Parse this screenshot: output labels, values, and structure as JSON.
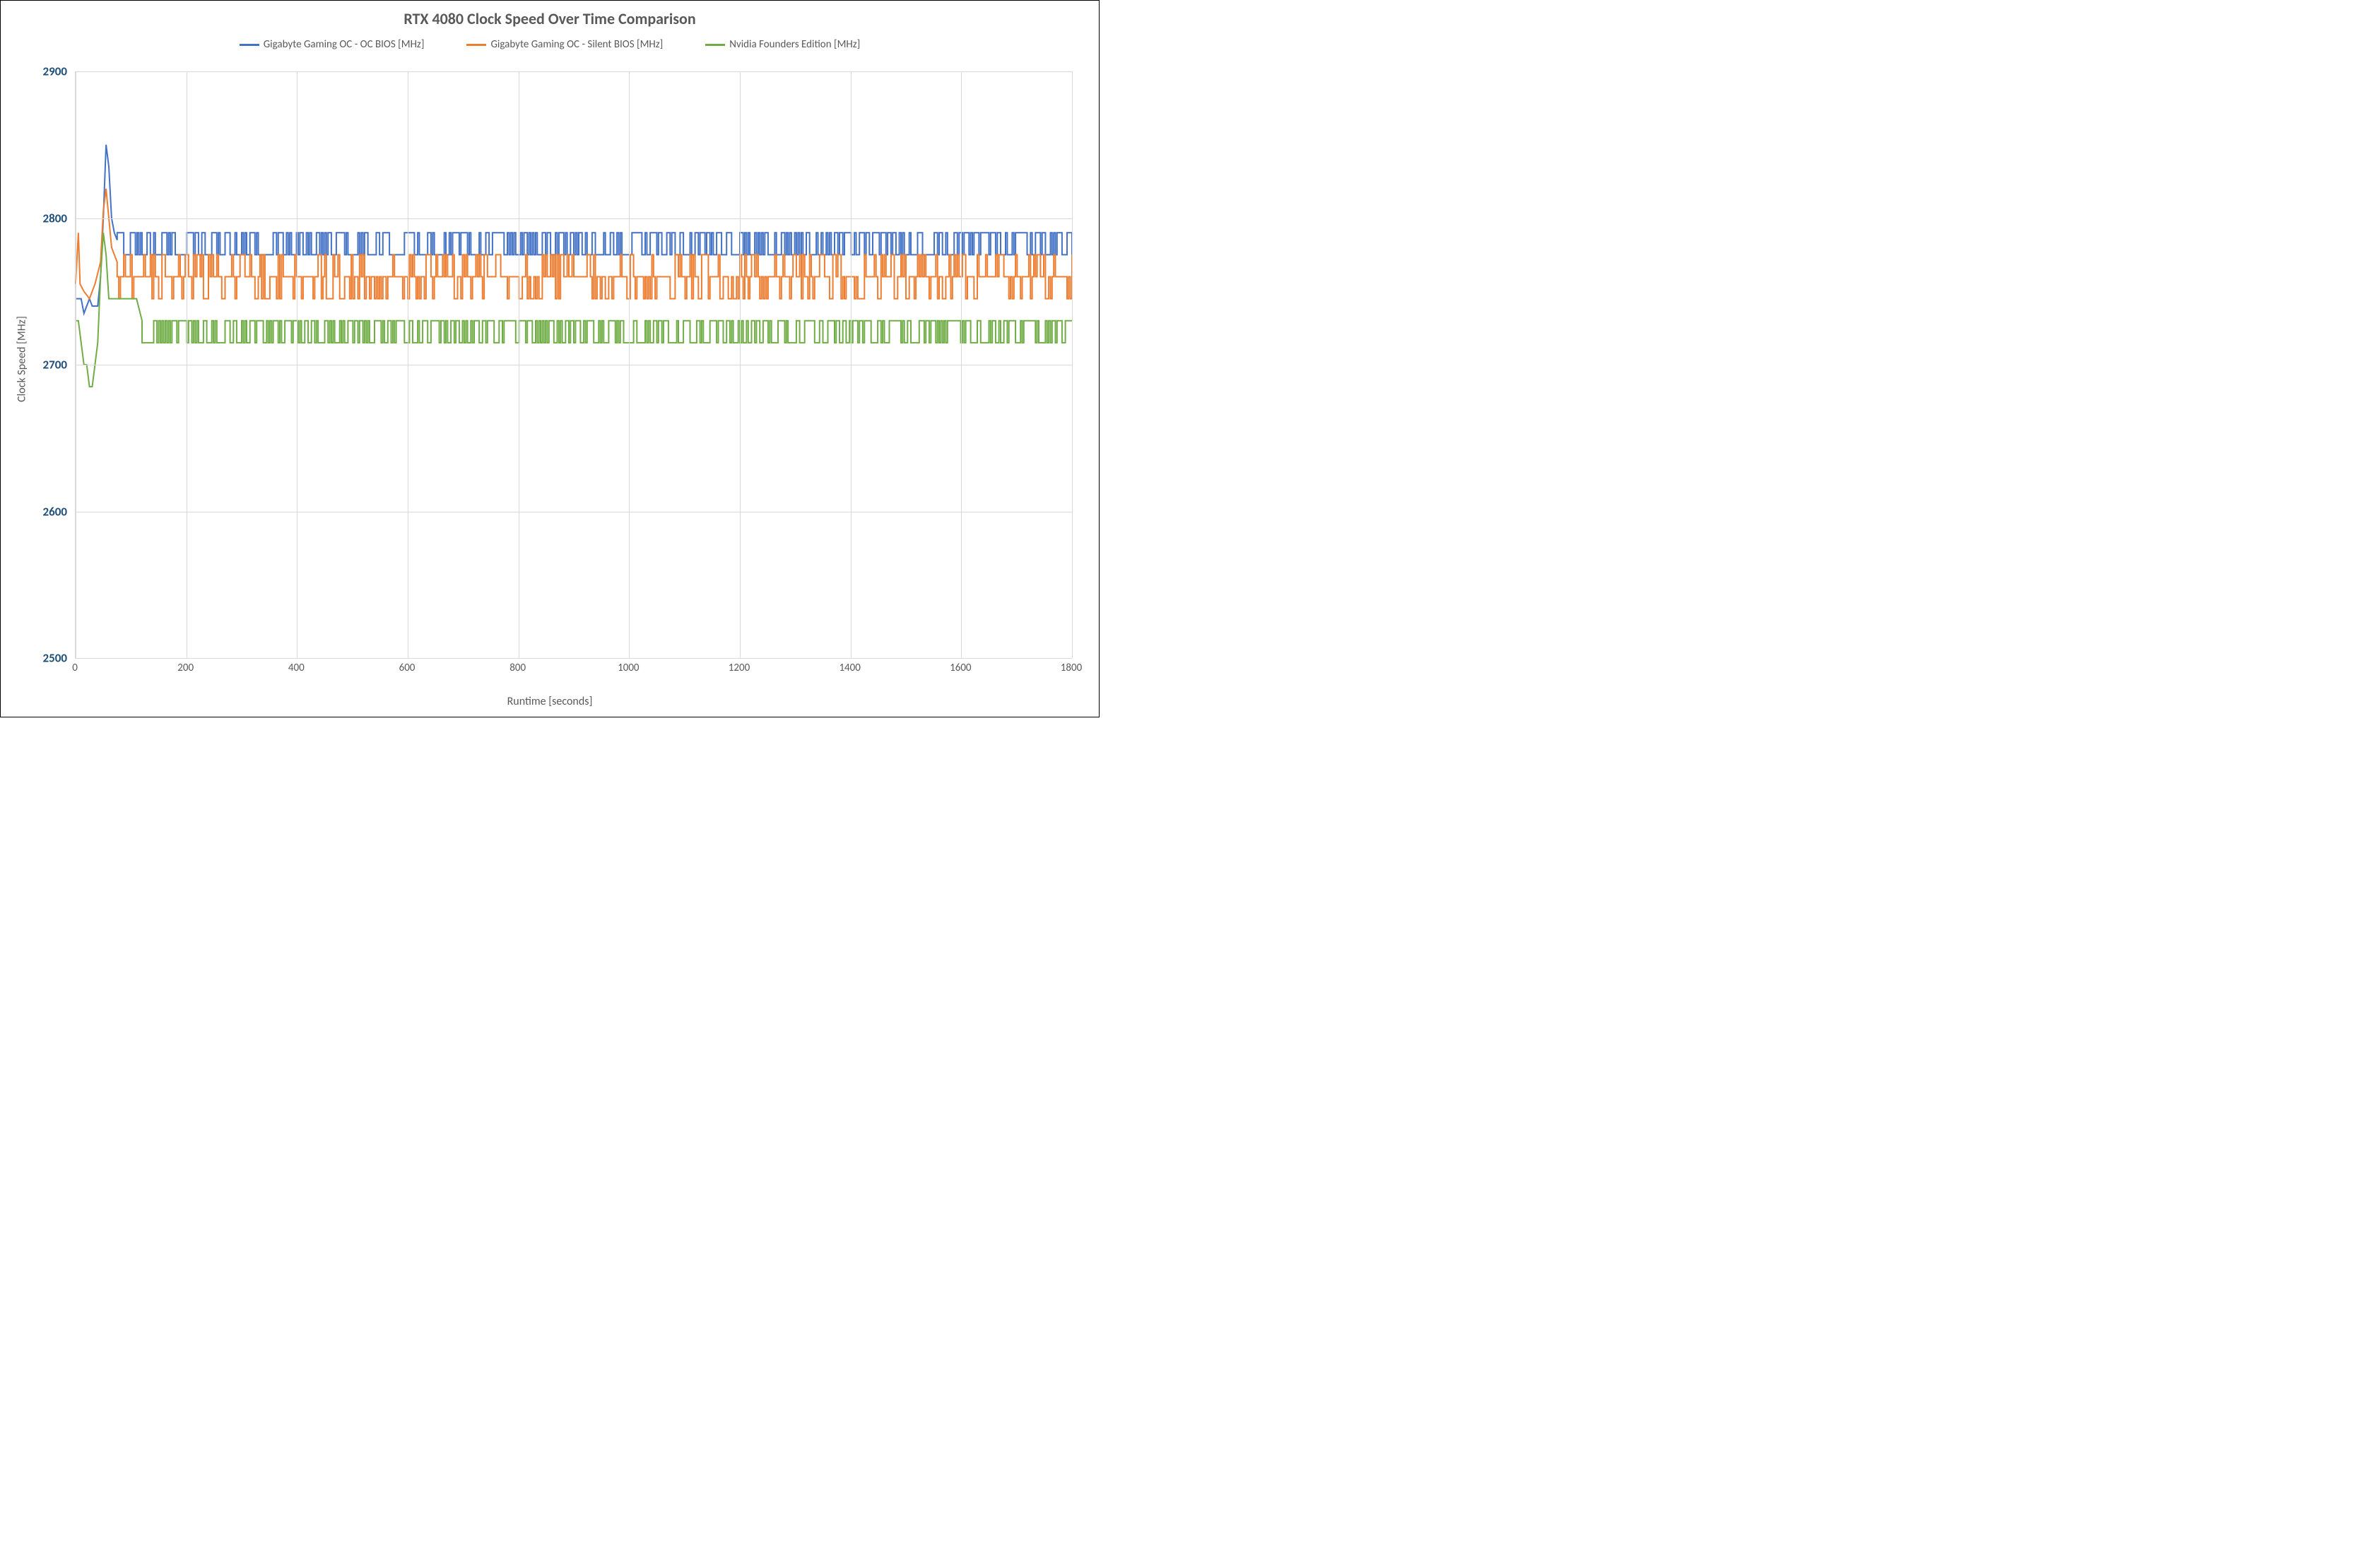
{
  "chart": {
    "type": "line",
    "title": "RTX 4080 Clock Speed Over Time Comparison",
    "title_fontsize": 22,
    "title_color": "#595959",
    "background_color": "#ffffff",
    "plot_border_color": "#d9d9d9",
    "grid_color": "#d9d9d9",
    "font_family": "Calibri, Arial, sans-serif",
    "legend": {
      "position": "top",
      "fontsize": 15,
      "items": [
        {
          "label": "Gigabyte Gaming OC - OC BIOS [MHz]",
          "color": "#4472c4"
        },
        {
          "label": "Gigabyte Gaming OC - Silent BIOS [MHz]",
          "color": "#ed7d31"
        },
        {
          "label": "Nvidia Founders Edition [MHz]",
          "color": "#70ad47"
        }
      ]
    },
    "x_axis": {
      "label": "Runtime [seconds]",
      "label_fontsize": 16,
      "label_color": "#595959",
      "tick_color": "#595959",
      "tick_fontsize": 15,
      "lim": [
        0,
        1800
      ],
      "tick_step": 200,
      "ticks": [
        0,
        200,
        400,
        600,
        800,
        1000,
        1200,
        1400,
        1600,
        1800
      ]
    },
    "y_axis": {
      "label": "Clock Speed [MHz]",
      "label_fontsize": 16,
      "label_color": "#595959",
      "tick_color": "#1f4e79",
      "tick_fontsize": 17,
      "tick_fontweight": "bold",
      "lim": [
        2500,
        2900
      ],
      "tick_step": 100,
      "ticks": [
        2500,
        2600,
        2700,
        2800,
        2900
      ]
    },
    "line_width": 2,
    "series": [
      {
        "name": "Gigabyte Gaming OC - OC BIOS [MHz]",
        "color": "#4472c4",
        "pattern": {
          "start": [
            [
              0,
              2745
            ],
            [
              10,
              2745
            ],
            [
              15,
              2735
            ],
            [
              25,
              2745
            ],
            [
              30,
              2740
            ],
            [
              40,
              2740
            ],
            [
              45,
              2760
            ],
            [
              50,
              2800
            ],
            [
              55,
              2850
            ],
            [
              60,
              2835
            ],
            [
              65,
              2800
            ],
            [
              70,
              2790
            ],
            [
              75,
              2785
            ]
          ],
          "levels": [
            2775,
            2790
          ],
          "weights": [
            0.55,
            0.45
          ],
          "from_x": 75,
          "to_x": 1800,
          "step": 3
        }
      },
      {
        "name": "Gigabyte Gaming OC - Silent BIOS [MHz]",
        "color": "#ed7d31",
        "pattern": {
          "start": [
            [
              0,
              2755
            ],
            [
              5,
              2790
            ],
            [
              8,
              2755
            ],
            [
              15,
              2750
            ],
            [
              25,
              2745
            ],
            [
              35,
              2755
            ],
            [
              45,
              2770
            ],
            [
              50,
              2805
            ],
            [
              55,
              2820
            ],
            [
              60,
              2800
            ],
            [
              65,
              2780
            ],
            [
              70,
              2775
            ],
            [
              75,
              2770
            ]
          ],
          "levels": [
            2745,
            2760,
            2775
          ],
          "weights": [
            0.25,
            0.5,
            0.25
          ],
          "from_x": 75,
          "to_x": 1800,
          "step": 3
        }
      },
      {
        "name": "Nvidia Founders Edition [MHz]",
        "color": "#70ad47",
        "pattern": {
          "start": [
            [
              0,
              2730
            ],
            [
              5,
              2730
            ],
            [
              10,
              2715
            ],
            [
              15,
              2700
            ],
            [
              20,
              2700
            ],
            [
              25,
              2685
            ],
            [
              30,
              2685
            ],
            [
              35,
              2700
            ],
            [
              40,
              2715
            ],
            [
              45,
              2760
            ],
            [
              50,
              2790
            ],
            [
              55,
              2775
            ],
            [
              60,
              2745
            ],
            [
              65,
              2745
            ],
            [
              70,
              2745
            ],
            [
              80,
              2745
            ],
            [
              90,
              2745
            ],
            [
              100,
              2745
            ],
            [
              110,
              2745
            ],
            [
              120,
              2730
            ]
          ],
          "levels": [
            2715,
            2730
          ],
          "weights": [
            0.45,
            0.55
          ],
          "from_x": 120,
          "to_x": 1800,
          "step": 3
        }
      }
    ]
  }
}
